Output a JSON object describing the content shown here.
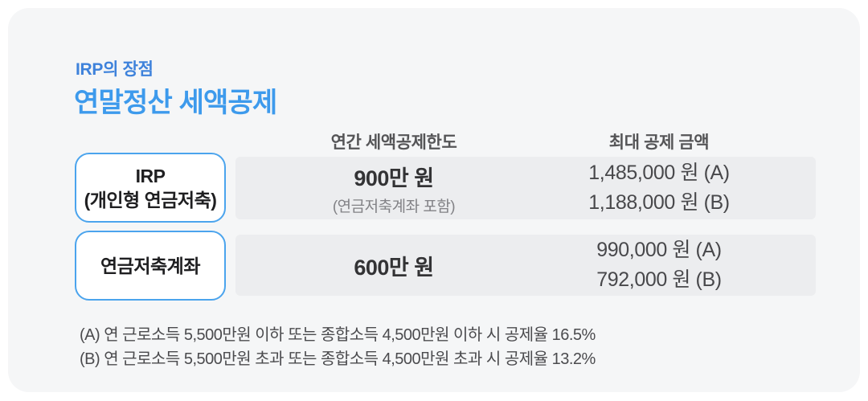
{
  "header": {
    "eyebrow": "IRP의 장점",
    "title": "연말정산 세액공제"
  },
  "table": {
    "columns": [
      "연간 세액공제한도",
      "최대 공제 금액"
    ],
    "rows": [
      {
        "label_line1": "IRP",
        "label_line2": "(개인형 연금저축)",
        "limit_main": "900만 원",
        "limit_sub": "(연금저축계좌 포함)",
        "amount_a": "1,485,000 원 (A)",
        "amount_b": "1,188,000 원 (B)"
      },
      {
        "label_line1": "연금저축계좌",
        "limit_main": "600만 원",
        "amount_a": "990,000 원 (A)",
        "amount_b": "792,000 원 (B)"
      }
    ]
  },
  "footnotes": [
    "(A) 연 근로소득 5,500만원 이하 또는 종합소득 4,500만원 이하 시 공제율 16.5%",
    "(B) 연 근로소득 5,500만원 초과 또는 종합소득 4,500만원 초과 시 공제율 13.2%"
  ],
  "colors": {
    "card_bg": "#F5F6F7",
    "band_bg": "#ECEDEF",
    "accent_title_blue": "#3D9AEC",
    "eyebrow_blue": "#3E82DB",
    "box_border_blue": "#4BA4ED"
  }
}
